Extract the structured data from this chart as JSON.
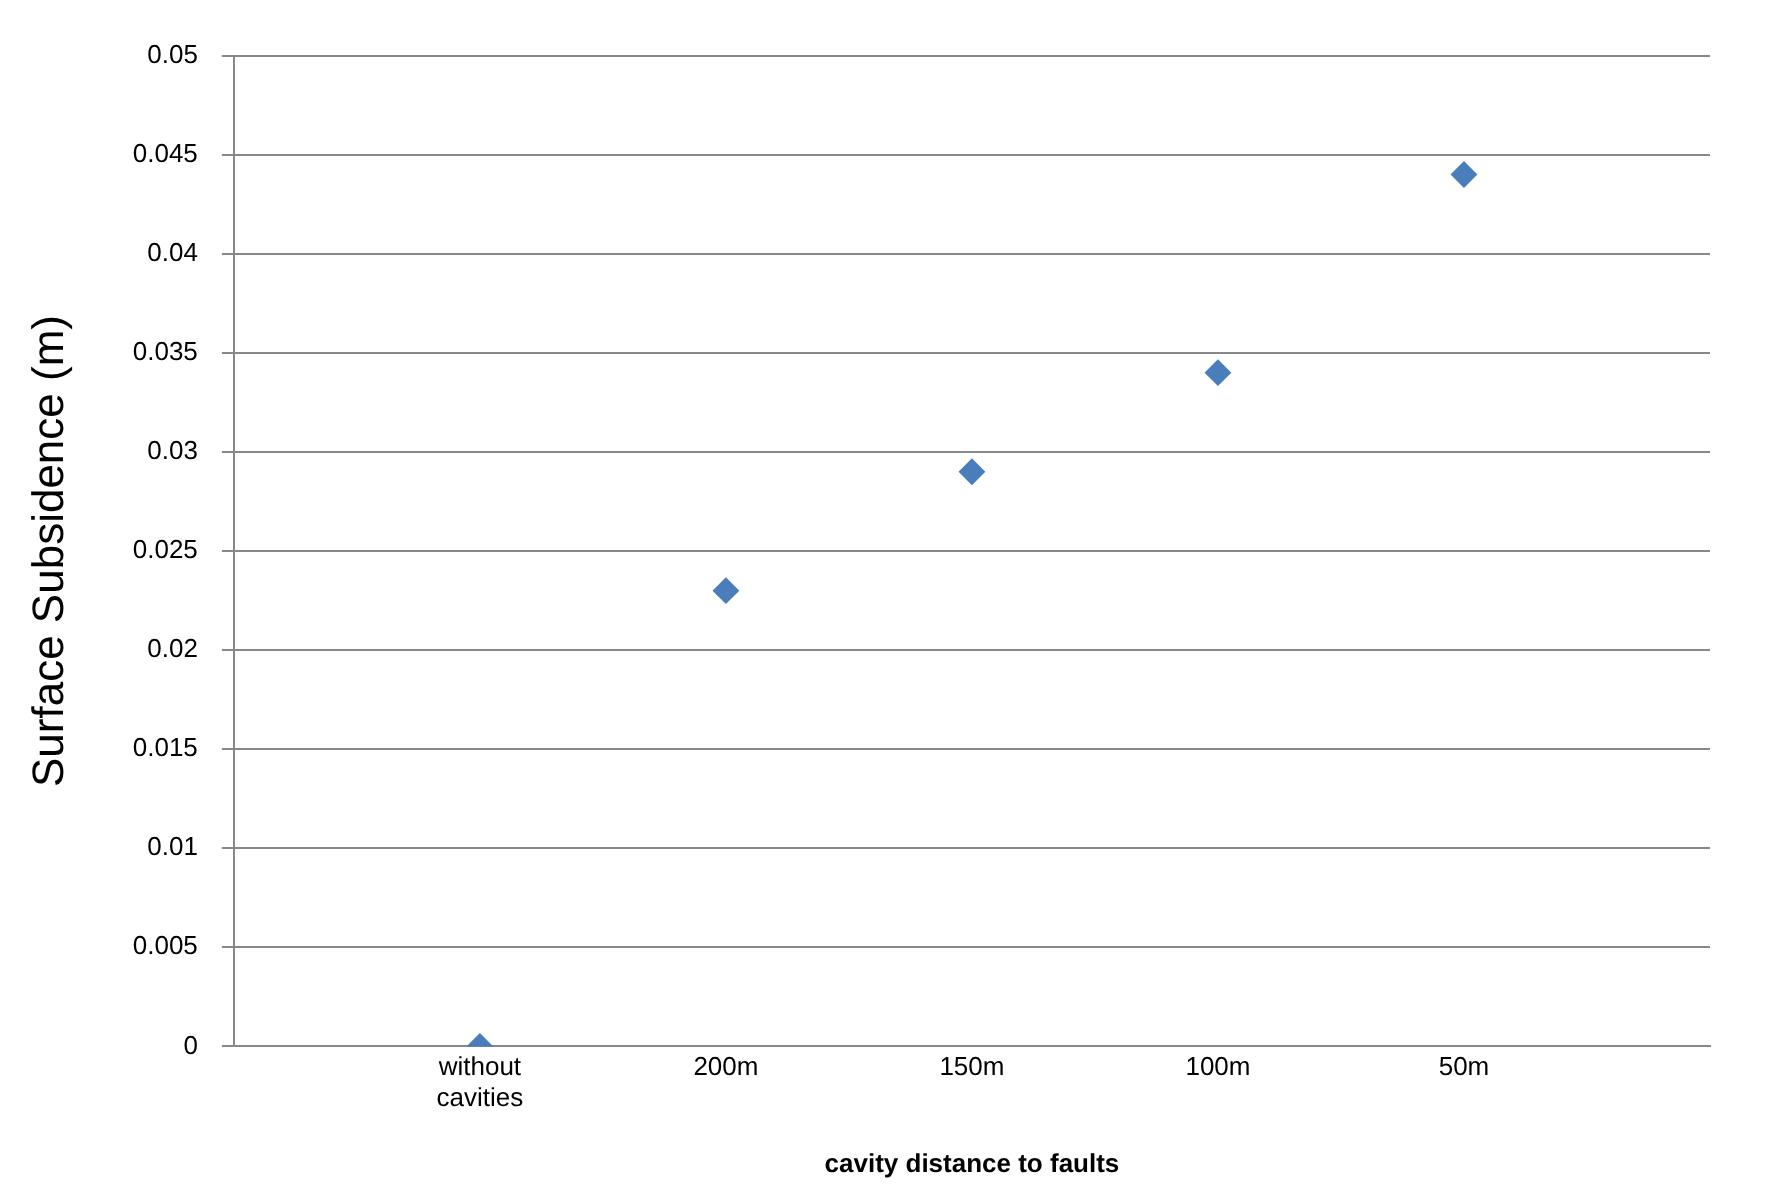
{
  "chart_data": {
    "type": "scatter",
    "xlabel": "cavity distance to faults",
    "ylabel": "Surface Subsidence (m)",
    "categories": [
      "without cavities",
      "200m",
      "150m",
      "100m",
      "50m"
    ],
    "series": [
      {
        "color": "#4a7ebb",
        "values": [
          0,
          0.023,
          0.029,
          0.034,
          0.044
        ]
      }
    ],
    "ylim": [
      0,
      0.05
    ],
    "yticks": [
      0,
      0.005,
      0.01,
      0.015,
      0.02,
      0.025,
      0.03,
      0.035,
      0.04,
      0.045,
      0.05
    ],
    "grid": "y",
    "legend": false,
    "marker": "diamond"
  }
}
